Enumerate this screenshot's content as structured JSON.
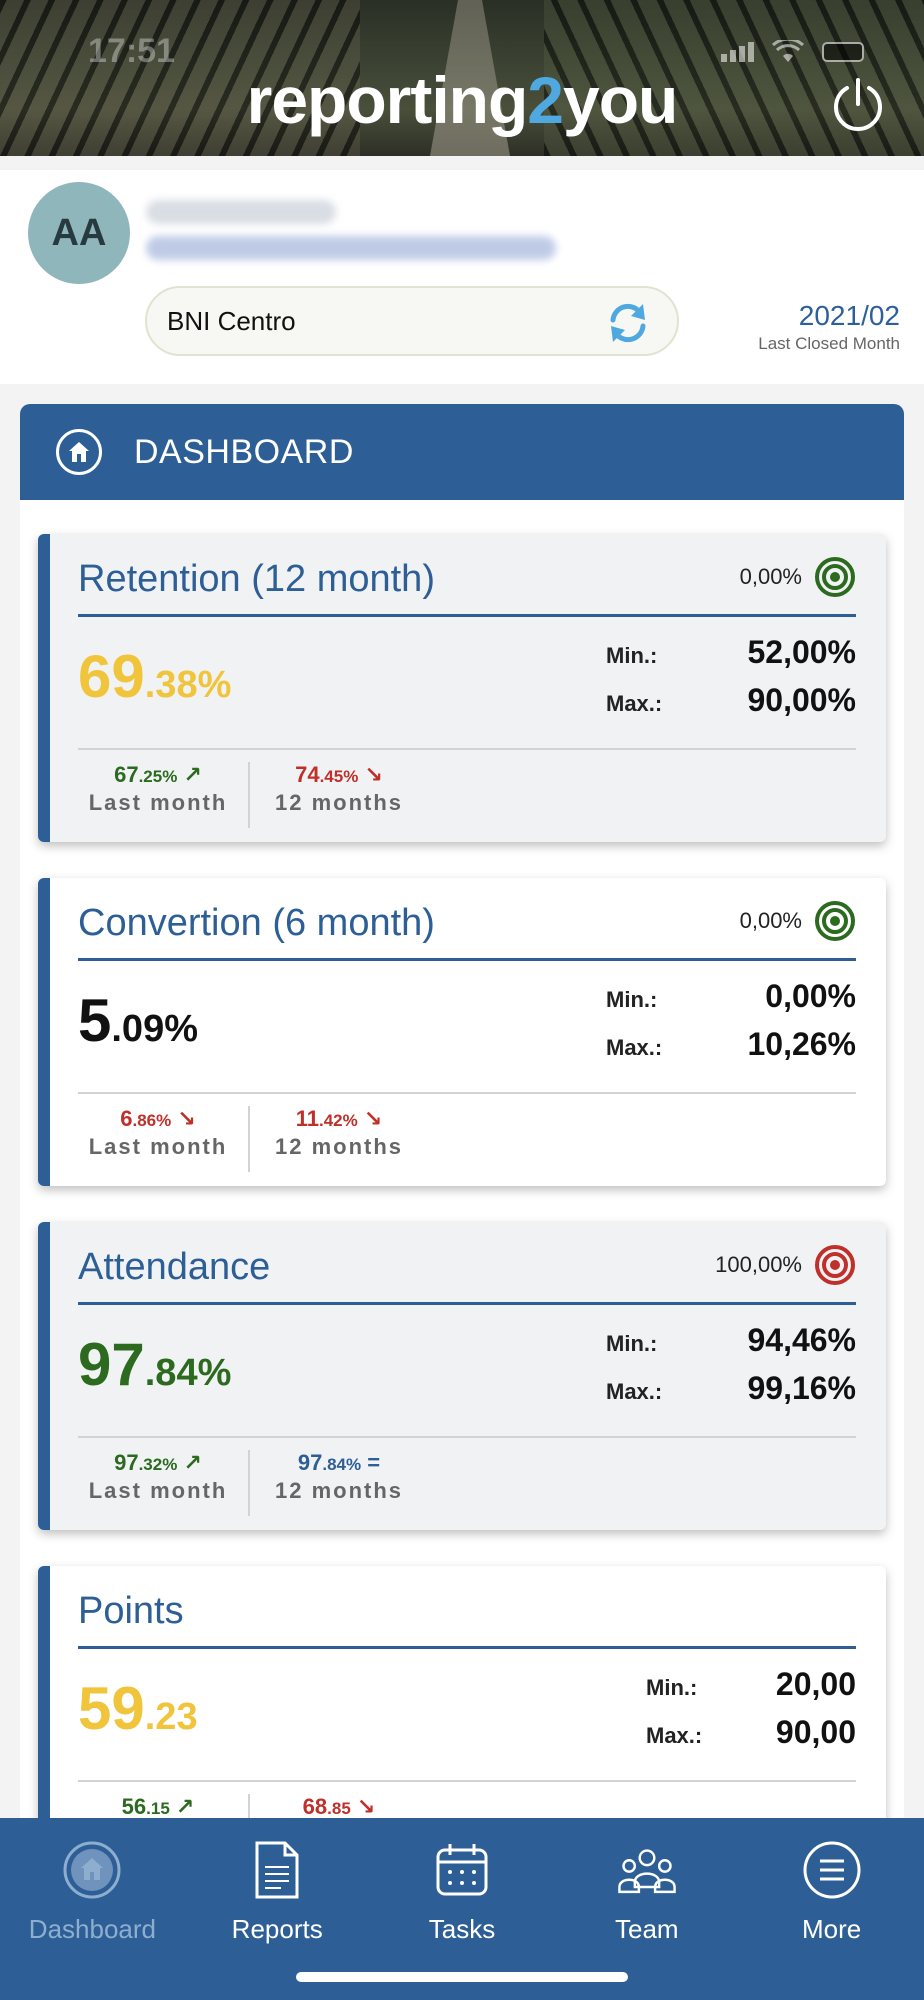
{
  "status_bar": {
    "time": "17:51"
  },
  "header": {
    "logo_pre": "reporting",
    "logo_two": "2",
    "logo_post": "you"
  },
  "profile": {
    "avatar_initials": "AA",
    "organization": "BNI Centro",
    "period_value": "2021/02",
    "period_label": "Last Closed Month"
  },
  "dashboard": {
    "title": "DASHBOARD",
    "cards": [
      {
        "title": "Retention (12 month)",
        "target": "0,00%",
        "target_color": "#2b6a1f",
        "value_int": "69",
        "value_dec": ".38%",
        "value_color": "#f0c43b",
        "min_label": "Min.:",
        "min": "52,00%",
        "max_label": "Max.:",
        "max": "90,00%",
        "last_int": "67",
        "last_dec": ".25%",
        "last_arrow": "↗",
        "last_color": "#2b6a1f",
        "last_label": "Last month",
        "year_int": "74",
        "year_dec": ".45%",
        "year_arrow": "↘",
        "year_color": "#c0302a",
        "year_label": "12 months"
      },
      {
        "title": "Convertion (6 month)",
        "target": "0,00%",
        "target_color": "#2b6a1f",
        "value_int": "5",
        "value_dec": ".09%",
        "value_color": "#111111",
        "min_label": "Min.:",
        "min": "0,00%",
        "max_label": "Max.:",
        "max": "10,26%",
        "last_int": "6",
        "last_dec": ".86%",
        "last_arrow": "↘",
        "last_color": "#c0302a",
        "last_label": "Last month",
        "year_int": "11",
        "year_dec": ".42%",
        "year_arrow": "↘",
        "year_color": "#c0302a",
        "year_label": "12 months"
      },
      {
        "title": "Attendance",
        "target": "100,00%",
        "target_color": "#c0302a",
        "value_int": "97",
        "value_dec": ".84%",
        "value_color": "#2b6a1f",
        "min_label": "Min.:",
        "min": "94,46%",
        "max_label": "Max.:",
        "max": "99,16%",
        "last_int": "97",
        "last_dec": ".32%",
        "last_arrow": "↗",
        "last_color": "#2b6a1f",
        "last_label": "Last month",
        "year_int": "97",
        "year_dec": ".84%",
        "year_arrow": "=",
        "year_color": "#2d5f96",
        "year_label": "12 months"
      },
      {
        "title": "Points",
        "value_int": "59",
        "value_dec": ".23",
        "value_color": "#f0c43b",
        "min_label": "Min.:",
        "min": "20,00",
        "max_label": "Max.:",
        "max": "90,00",
        "last_int": "56",
        "last_dec": ".15",
        "last_arrow": "↗",
        "last_color": "#2b6a1f",
        "year_int": "68",
        "year_dec": ".85",
        "year_arrow": "↘",
        "year_color": "#c0302a"
      }
    ]
  },
  "nav": {
    "dashboard": "Dashboard",
    "reports": "Reports",
    "tasks": "Tasks",
    "team": "Team",
    "more": "More"
  },
  "icons": {
    "power": "power-icon",
    "sync": "sync-icon",
    "home": "home-icon",
    "target": "target-icon",
    "reports": "document-icon",
    "tasks": "calendar-icon",
    "team": "team-icon",
    "more": "menu-icon"
  }
}
